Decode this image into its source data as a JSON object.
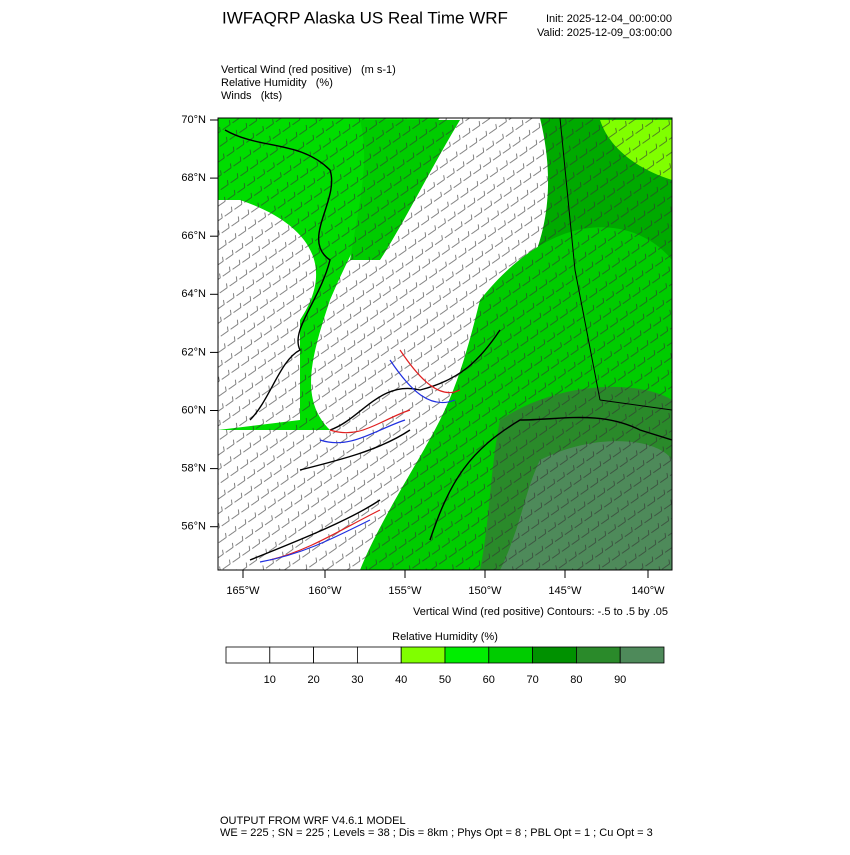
{
  "header": {
    "title": "IWFAQRP Alaska US Real Time WRF",
    "init": "Init: 2025-12-04_00:00:00",
    "valid": "Valid: 2025-12-09_03:00:00"
  },
  "fields": [
    "Vertical Wind (red positive)   (m s-1)",
    "Relative Humidity   (%)",
    "Winds   (kts)"
  ],
  "map": {
    "lat_labels": [
      "70°N",
      "68°N",
      "66°N",
      "64°N",
      "62°N",
      "60°N",
      "58°N",
      "56°N"
    ],
    "lon_labels": [
      "165°W",
      "160°W",
      "155°W",
      "150°W",
      "145°W",
      "140°W"
    ],
    "contour_note": "Vertical Wind (red positive) Contours: -.5 to .5 by .05"
  },
  "colorbar": {
    "title": "Relative Humidity  (%)",
    "ticks": [
      10,
      20,
      30,
      40,
      50,
      60,
      70,
      80,
      90
    ],
    "colors": [
      "#ffffff",
      "#ffffff",
      "#ffffff",
      "#ffffff",
      "#80ff00",
      "#00ee00",
      "#00cc00",
      "#009100",
      "#2a8a2a",
      "#4e8a5a"
    ]
  },
  "footer": {
    "line1": "OUTPUT FROM WRF V4.6.1 MODEL",
    "line2": "WE = 225 ; SN = 225 ; Levels = 38 ; Dis = 8km ; Phys Opt = 8 ; PBL Opt = 1 ; Cu Opt = 3"
  }
}
